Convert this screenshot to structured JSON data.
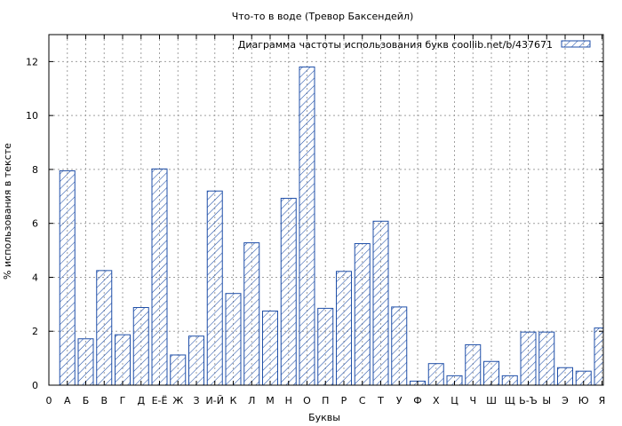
{
  "chart_data": {
    "type": "bar",
    "title": "Что-то в воде (Тревор Баксендейл)",
    "xlabel": "Буквы",
    "ylabel": "% использования в тексте",
    "ylim": [
      0,
      13
    ],
    "yticks": [
      0,
      2,
      4,
      6,
      8,
      10,
      12
    ],
    "grid": true,
    "legend_position": "top-right",
    "legend_label": "Диаграмма частоты использования букв  coollib.net/b/437671",
    "bar_color": "#1f4fa8",
    "categories": [
      "0",
      "А",
      "Б",
      "В",
      "Г",
      "Д",
      "Е-Ё",
      "Ж",
      "З",
      "И-Й",
      "К",
      "Л",
      "М",
      "Н",
      "О",
      "П",
      "Р",
      "С",
      "Т",
      "У",
      "Ф",
      "Х",
      "Ц",
      "Ч",
      "Ш",
      "Щ",
      "Ь-Ъ",
      "Ы",
      "Э",
      "Ю",
      "Я"
    ],
    "values": [
      null,
      7.95,
      1.72,
      4.25,
      1.87,
      2.88,
      8.02,
      1.12,
      1.82,
      7.2,
      3.4,
      5.28,
      2.75,
      6.93,
      11.8,
      2.85,
      4.22,
      5.25,
      6.08,
      2.9,
      0.15,
      0.8,
      0.35,
      1.5,
      0.88,
      0.35,
      1.97,
      1.97,
      0.65,
      0.52,
      2.12
    ]
  }
}
